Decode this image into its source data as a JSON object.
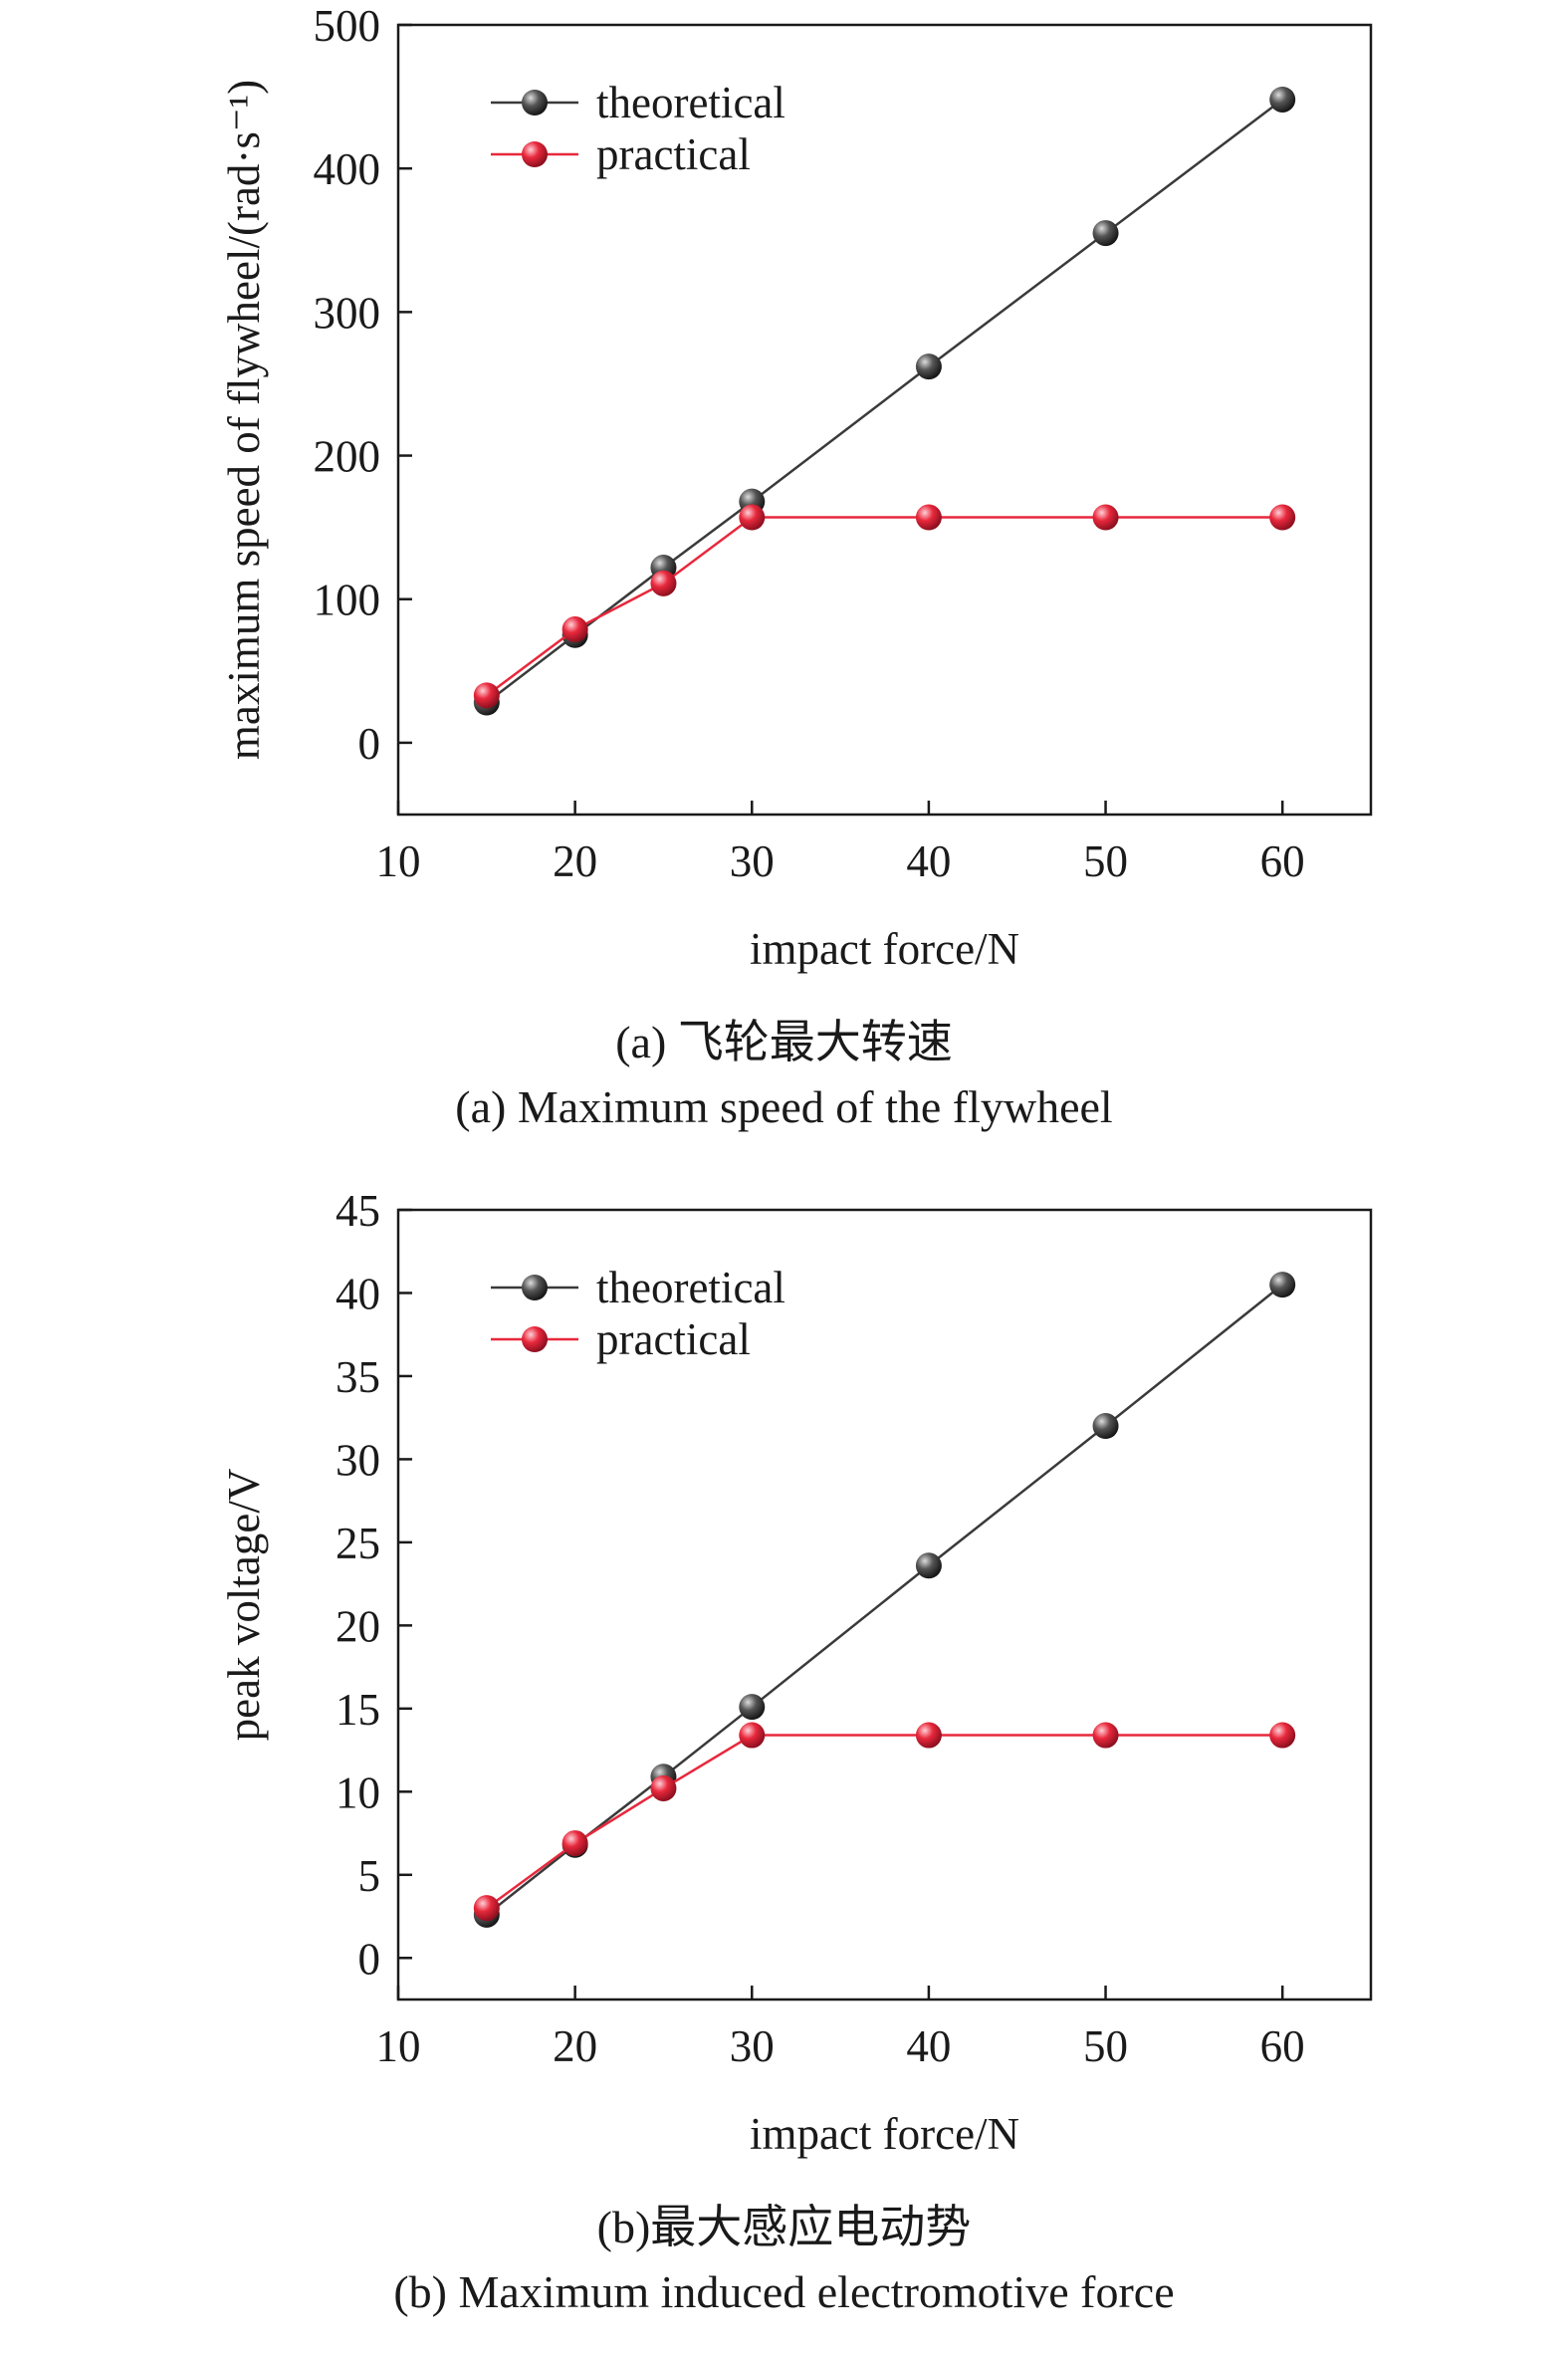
{
  "colors": {
    "theoretical": "#3a3a3a",
    "practical": "#e8283c",
    "axis": "#1a1a1a"
  },
  "chart_data": [
    {
      "type": "line",
      "caption_cn": "(a) 飞轮最大转速",
      "caption_en": "(a) Maximum speed of the flywheel",
      "xlabel": "impact force/N",
      "ylabel": "maximum speed of flywheel/(rad·s⁻¹)",
      "xlim": [
        10,
        65
      ],
      "ylim": [
        -50,
        500
      ],
      "xticks": [
        10,
        20,
        30,
        40,
        50,
        60
      ],
      "yticks": [
        0,
        100,
        200,
        300,
        400,
        500
      ],
      "grid": false,
      "legend_position": "top-left",
      "x": [
        15,
        20,
        25,
        30,
        40,
        50,
        60
      ],
      "series": [
        {
          "name": "theoretical",
          "values": [
            28,
            75,
            122,
            168,
            262,
            355,
            448
          ]
        },
        {
          "name": "practical",
          "values": [
            33,
            79,
            111,
            157,
            157,
            157,
            157
          ]
        }
      ]
    },
    {
      "type": "line",
      "caption_cn": "(b)最大感应电动势",
      "caption_en": "(b) Maximum induced electromotive force",
      "xlabel": "impact force/N",
      "ylabel": "peak voltage/V",
      "xlim": [
        10,
        65
      ],
      "ylim": [
        -2.5,
        45
      ],
      "xticks": [
        10,
        20,
        30,
        40,
        50,
        60
      ],
      "yticks": [
        0,
        5,
        10,
        15,
        20,
        25,
        30,
        35,
        40,
        45
      ],
      "grid": false,
      "legend_position": "top-left",
      "x": [
        15,
        20,
        25,
        30,
        40,
        50,
        60
      ],
      "series": [
        {
          "name": "theoretical",
          "values": [
            2.6,
            6.8,
            10.9,
            15.1,
            23.6,
            32.0,
            40.5
          ]
        },
        {
          "name": "practical",
          "values": [
            3.0,
            6.9,
            10.2,
            13.4,
            13.4,
            13.4,
            13.4
          ]
        }
      ]
    }
  ]
}
